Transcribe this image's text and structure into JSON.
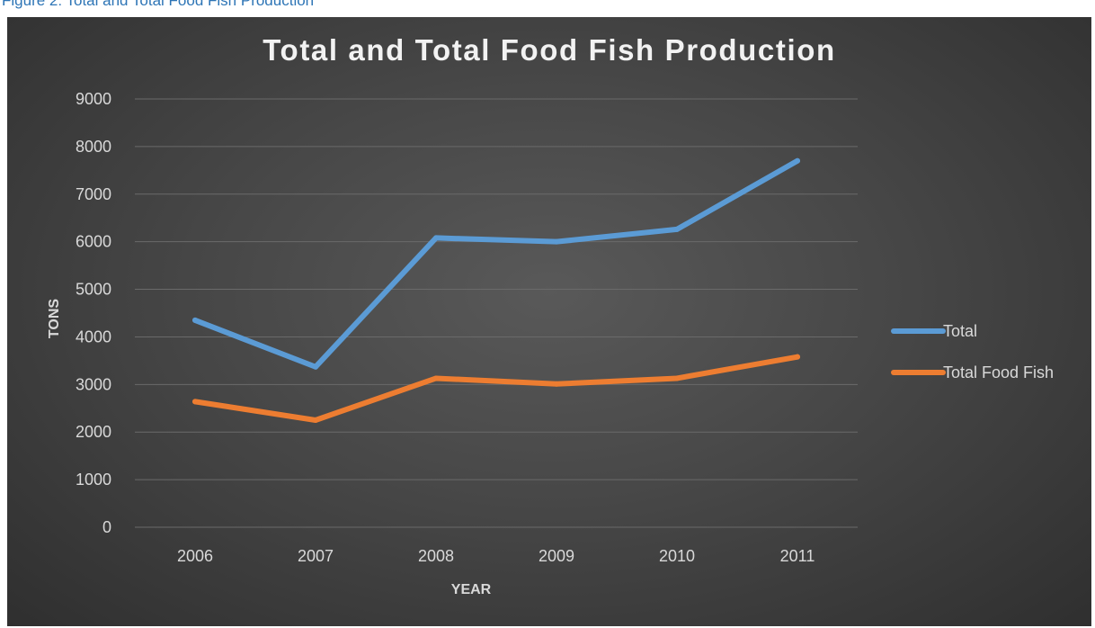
{
  "caption": "Figure 2: Total and Total Food Fish Production",
  "chart_data": {
    "type": "line",
    "title": "Total and Total Food Fish Production",
    "xlabel": "YEAR",
    "ylabel": "TONS",
    "categories": [
      "2006",
      "2007",
      "2008",
      "2009",
      "2010",
      "2011"
    ],
    "ylim": [
      0,
      9000
    ],
    "yticks": [
      0,
      1000,
      2000,
      3000,
      4000,
      5000,
      6000,
      7000,
      8000,
      9000
    ],
    "grid": true,
    "legend_position": "right",
    "series": [
      {
        "name": "Total",
        "color": "#5b9bd5",
        "values": [
          4350,
          3370,
          6080,
          6000,
          6260,
          7700
        ]
      },
      {
        "name": "Total Food Fish",
        "color": "#ed7d31",
        "values": [
          2640,
          2250,
          3130,
          3010,
          3130,
          3580
        ]
      }
    ]
  }
}
